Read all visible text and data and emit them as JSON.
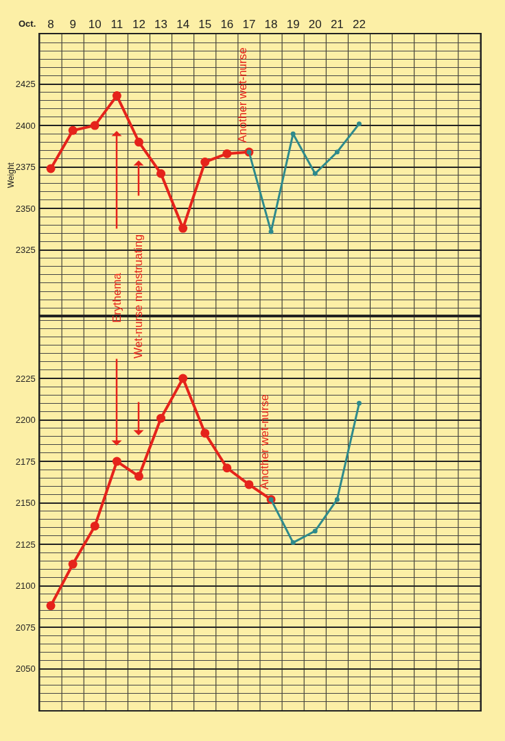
{
  "chart_data": [
    {
      "type": "line",
      "xlabel": "Oct.",
      "ylabel": "Weight",
      "categories": [
        "8",
        "9",
        "10",
        "11",
        "12",
        "13",
        "14",
        "15",
        "16",
        "17",
        "18",
        "19",
        "20",
        "21",
        "22",
        null,
        null,
        null,
        null,
        null
      ],
      "series": [
        {
          "color": "#e5231b",
          "values": [
            2374,
            2397,
            2400,
            2418,
            2390,
            2371,
            2338,
            2378,
            2383,
            2384,
            null,
            null,
            null,
            null,
            null,
            null,
            null,
            null,
            null,
            null
          ]
        },
        {
          "color": "#2e8a8c",
          "values": [
            null,
            null,
            null,
            null,
            null,
            null,
            null,
            null,
            null,
            2384,
            2336,
            2395,
            2371,
            2384,
            2401,
            null,
            null,
            null,
            null,
            null
          ]
        }
      ],
      "ylim": [
        2285,
        2455
      ],
      "yticks": [
        2325,
        2350,
        2375,
        2400,
        2425
      ],
      "grid": true,
      "marker": "circle",
      "line_style": "solid",
      "tick_labels": "xy",
      "annotations": [
        "Erythema",
        "Wet-nurse menstruating",
        {
          "text": "Another wet-nurse",
          "x": "17",
          "y": 2384
        }
      ]
    },
    {
      "type": "line",
      "categories": [
        "8",
        "9",
        "10",
        "11",
        "12",
        "13",
        "14",
        "15",
        "16",
        "17",
        "18",
        "19",
        "20",
        "21",
        "22",
        null,
        null,
        null,
        null,
        null
      ],
      "series": [
        {
          "color": "#e5231b",
          "values": [
            2088,
            2113,
            2136,
            2175,
            2166,
            2201,
            2225,
            2192,
            2171,
            2161,
            2152,
            null,
            null,
            null,
            null,
            null,
            null,
            null,
            null,
            null
          ]
        },
        {
          "color": "#2e8a8c",
          "values": [
            null,
            null,
            null,
            null,
            null,
            null,
            null,
            null,
            null,
            null,
            2152,
            2126,
            2133,
            2152,
            2210,
            null,
            null,
            null,
            null,
            null
          ]
        }
      ],
      "ylim": [
        2025,
        2262.5
      ],
      "yticks": [
        2050,
        2075,
        2100,
        2125,
        2150,
        2175,
        2200,
        2225
      ],
      "grid": true,
      "marker": "circle",
      "line_style": "solid",
      "tick_labels": "y",
      "annotations": [
        {
          "text": "Another wet-nurse",
          "x": "18",
          "y": 2152
        }
      ]
    }
  ]
}
